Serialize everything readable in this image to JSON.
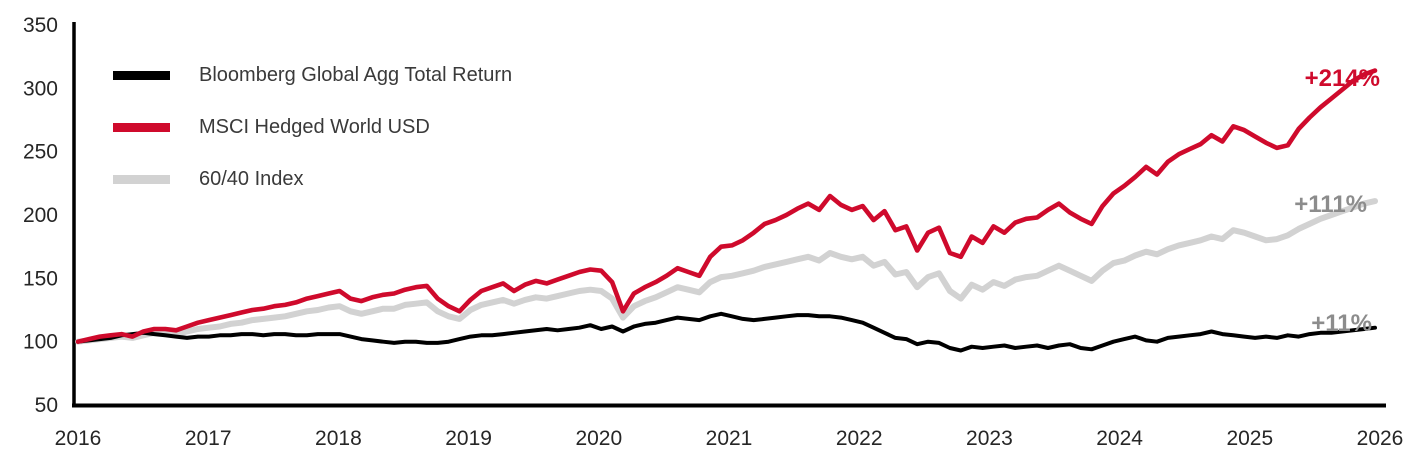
{
  "chart_data": {
    "type": "line",
    "title": "",
    "grid": false,
    "legend_position": "top-left",
    "x_axis": {
      "tick_labels": [
        "2016",
        "2017",
        "2018",
        "2019",
        "2020",
        "2021",
        "2022",
        "2023",
        "2024",
        "2025",
        "2026"
      ]
    },
    "y_axis": {
      "min": 50,
      "max": 350,
      "tick_step": 50,
      "tick_labels": [
        "350",
        "300",
        "250",
        "200",
        "150",
        "100",
        "50"
      ]
    },
    "series": [
      {
        "name": "Bloomberg Global Agg Total Return",
        "color": "#000000",
        "end_label": "+11%",
        "end_label_color": "#8c8c8c",
        "values": [
          100,
          101,
          102,
          103,
          105,
          106,
          107,
          106,
          105,
          104,
          103,
          104,
          104,
          105,
          105,
          106,
          106,
          105,
          106,
          106,
          105,
          105,
          106,
          106,
          106,
          104,
          102,
          101,
          100,
          99,
          100,
          100,
          99,
          99,
          100,
          102,
          104,
          105,
          105,
          106,
          107,
          108,
          109,
          110,
          109,
          110,
          111,
          113,
          110,
          112,
          108,
          112,
          114,
          115,
          117,
          119,
          118,
          117,
          120,
          122,
          120,
          118,
          117,
          118,
          119,
          120,
          121,
          121,
          120,
          120,
          119,
          117,
          115,
          111,
          107,
          103,
          102,
          98,
          100,
          99,
          95,
          93,
          96,
          95,
          96,
          97,
          95,
          96,
          97,
          95,
          97,
          98,
          95,
          94,
          97,
          100,
          102,
          104,
          101,
          100,
          103,
          104,
          105,
          106,
          108,
          106,
          105,
          104,
          103,
          104,
          103,
          105,
          104,
          106,
          107,
          107,
          108,
          109,
          110,
          111
        ]
      },
      {
        "name": "MSCI Hedged World USD",
        "color": "#cf0a2c",
        "end_label": "+214%",
        "end_label_color": "#cf0a2c",
        "values": [
          100,
          102,
          104,
          105,
          106,
          104,
          108,
          110,
          110,
          109,
          112,
          115,
          117,
          119,
          121,
          123,
          125,
          126,
          128,
          129,
          131,
          134,
          136,
          138,
          140,
          134,
          132,
          135,
          137,
          138,
          141,
          143,
          144,
          134,
          128,
          124,
          133,
          140,
          143,
          146,
          140,
          145,
          148,
          146,
          149,
          152,
          155,
          157,
          156,
          147,
          124,
          138,
          143,
          147,
          152,
          158,
          155,
          152,
          167,
          175,
          176,
          180,
          186,
          193,
          196,
          200,
          205,
          209,
          204,
          215,
          208,
          204,
          207,
          196,
          203,
          188,
          191,
          172,
          186,
          190,
          170,
          167,
          183,
          178,
          191,
          186,
          194,
          197,
          198,
          204,
          209,
          202,
          197,
          193,
          207,
          217,
          223,
          230,
          238,
          232,
          242,
          248,
          252,
          256,
          263,
          258,
          270,
          267,
          262,
          257,
          253,
          255,
          268,
          277,
          285,
          292,
          299,
          306,
          311,
          314
        ]
      },
      {
        "name": "60/40 Index",
        "color": "#d2d2d2",
        "end_label": "+111%",
        "end_label_color": "#8c8c8c",
        "values": [
          100,
          101,
          102,
          103,
          104,
          103,
          105,
          107,
          107,
          106,
          108,
          110,
          111,
          112,
          114,
          115,
          117,
          118,
          119,
          120,
          122,
          124,
          125,
          127,
          128,
          124,
          122,
          124,
          126,
          126,
          129,
          130,
          131,
          124,
          120,
          118,
          125,
          129,
          131,
          133,
          130,
          133,
          135,
          134,
          136,
          138,
          140,
          141,
          140,
          134,
          119,
          128,
          132,
          135,
          139,
          143,
          141,
          139,
          147,
          151,
          152,
          154,
          156,
          159,
          161,
          163,
          165,
          167,
          164,
          170,
          167,
          165,
          167,
          160,
          163,
          153,
          155,
          143,
          151,
          154,
          140,
          134,
          145,
          141,
          147,
          144,
          149,
          151,
          152,
          156,
          160,
          156,
          152,
          148,
          156,
          162,
          164,
          168,
          171,
          169,
          173,
          176,
          178,
          180,
          183,
          181,
          188,
          186,
          183,
          180,
          181,
          184,
          189,
          193,
          197,
          200,
          203,
          206,
          209,
          211
        ]
      }
    ]
  }
}
